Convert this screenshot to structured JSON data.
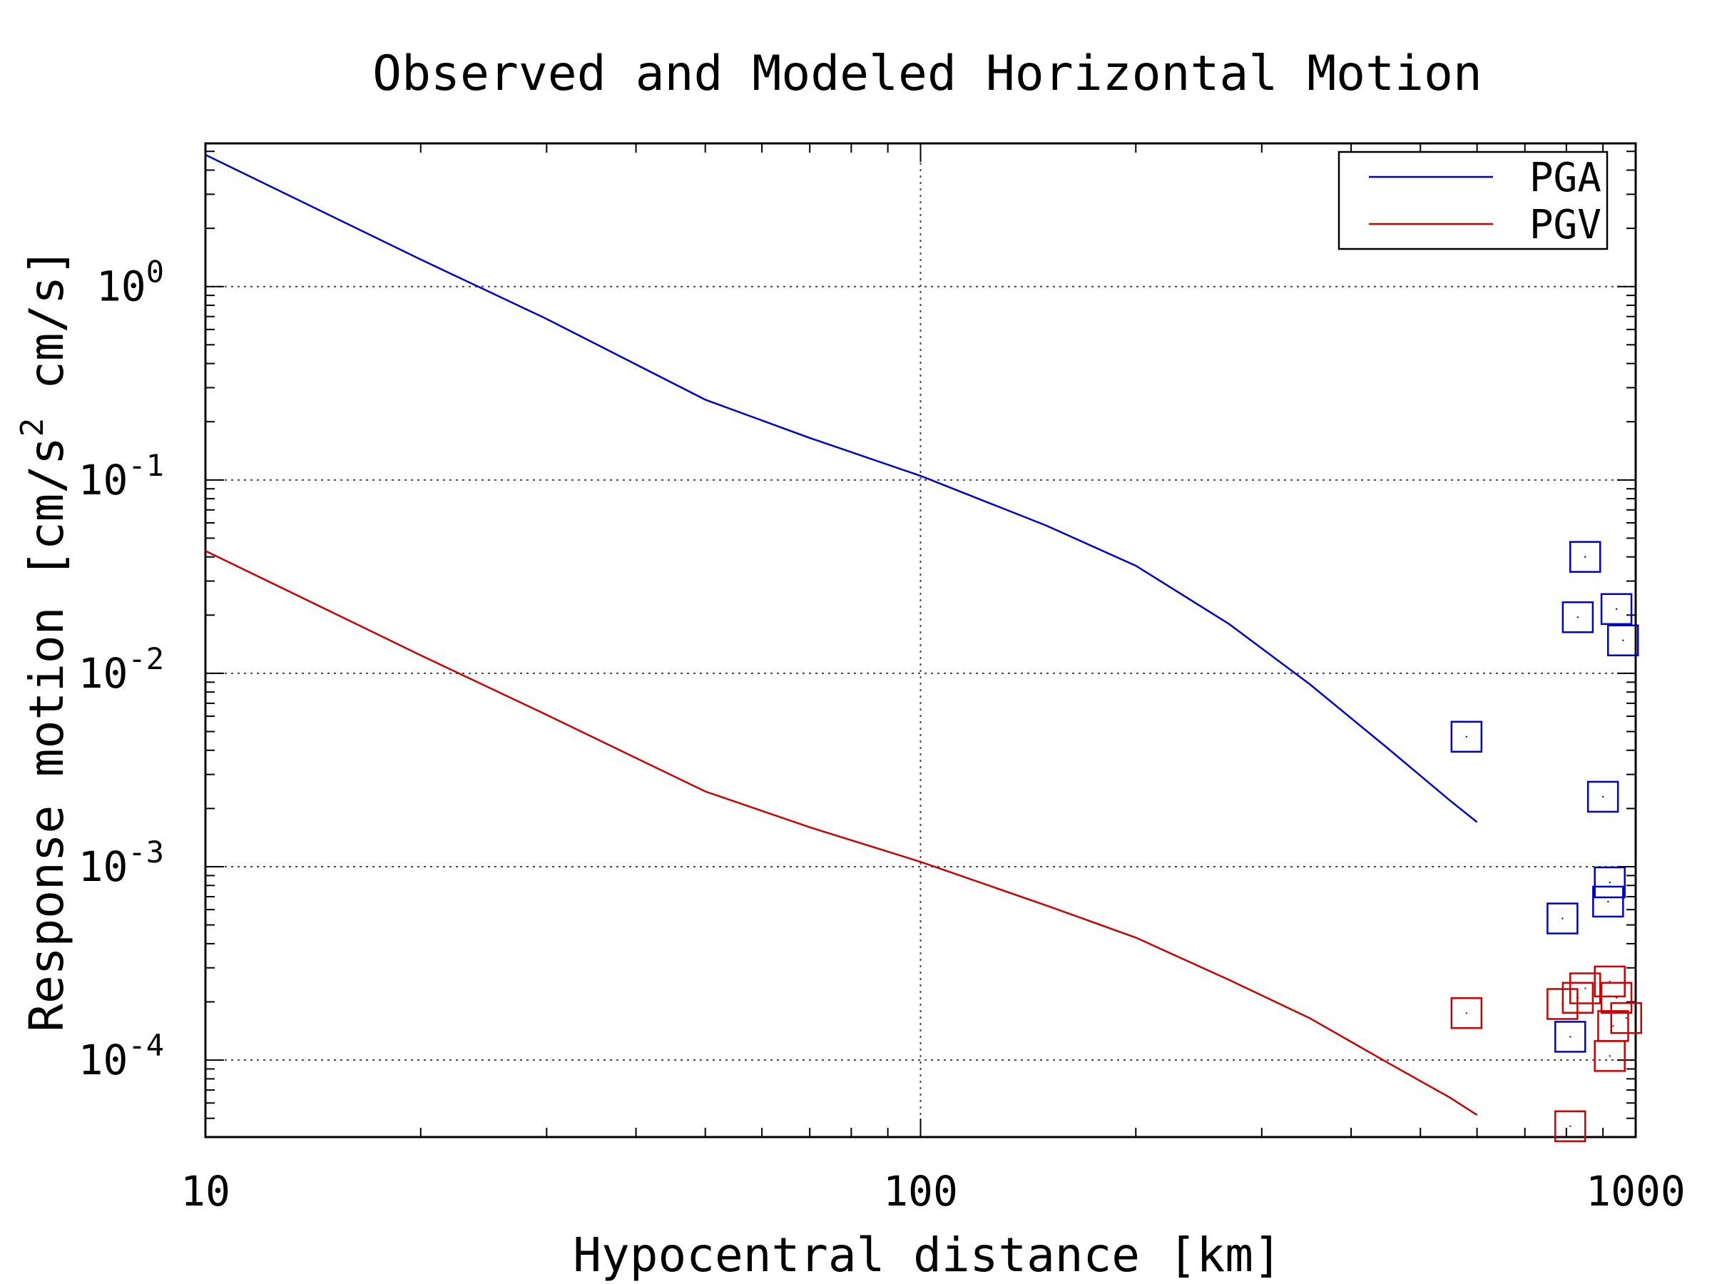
{
  "chart_data": {
    "type": "line",
    "title": "Observed and Modeled Horizontal Motion",
    "xlabel": "Hypocentral distance [km]",
    "ylabel": "Response motion  [cm/s",
    "ylabel_sup": "2",
    "ylabel_end": "  cm/s]",
    "x_scale": "log",
    "y_scale": "log",
    "xlim": [
      10,
      1000
    ],
    "ylim": [
      4e-05,
      5.5
    ],
    "grid": true,
    "legend_position": "top-right",
    "x_ticks": [
      {
        "value": 10,
        "label": "10"
      },
      {
        "value": 100,
        "label": "100"
      },
      {
        "value": 1000,
        "label": "1000"
      }
    ],
    "y_ticks": [
      {
        "value": 1,
        "base": "10",
        "exp": "0"
      },
      {
        "value": 0.1,
        "base": "10",
        "exp": "-1"
      },
      {
        "value": 0.01,
        "base": "10",
        "exp": "-2"
      },
      {
        "value": 0.001,
        "base": "10",
        "exp": "-3"
      },
      {
        "value": 0.0001,
        "base": "10",
        "exp": "-4"
      }
    ],
    "series": [
      {
        "name": "PGA",
        "color": "#0000cc",
        "kind": "line",
        "x": [
          10,
          20,
          30,
          50,
          70,
          100,
          150,
          200,
          270,
          350,
          450,
          550,
          600
        ],
        "y": [
          4.8,
          1.38,
          0.68,
          0.26,
          0.165,
          0.105,
          0.058,
          0.036,
          0.018,
          0.0088,
          0.0041,
          0.0022,
          0.0017
        ]
      },
      {
        "name": "PGV",
        "color": "#cc0000",
        "kind": "line",
        "x": [
          10,
          20,
          30,
          50,
          70,
          100,
          150,
          200,
          270,
          350,
          450,
          550,
          600
        ],
        "y": [
          0.043,
          0.0124,
          0.0061,
          0.00245,
          0.0016,
          0.00106,
          0.00063,
          0.00043,
          0.00026,
          0.000165,
          9.7e-05,
          6.4e-05,
          5.2e-05
        ]
      }
    ],
    "observed": [
      {
        "series": "PGA",
        "color": "#0000cc",
        "points": [
          {
            "x": 850,
            "y": 0.04
          },
          {
            "x": 830,
            "y": 0.0195
          },
          {
            "x": 940,
            "y": 0.0215
          },
          {
            "x": 960,
            "y": 0.0148
          },
          {
            "x": 580,
            "y": 0.0047
          },
          {
            "x": 900,
            "y": 0.0023
          },
          {
            "x": 920,
            "y": 0.00083
          },
          {
            "x": 915,
            "y": 0.00066
          },
          {
            "x": 790,
            "y": 0.00054
          },
          {
            "x": 810,
            "y": 0.000132
          }
        ]
      },
      {
        "series": "PGV",
        "color": "#cc0000",
        "points": [
          {
            "x": 580,
            "y": 0.000175
          },
          {
            "x": 790,
            "y": 0.000195
          },
          {
            "x": 830,
            "y": 0.00021
          },
          {
            "x": 850,
            "y": 0.000235
          },
          {
            "x": 920,
            "y": 0.000255
          },
          {
            "x": 940,
            "y": 0.00021
          },
          {
            "x": 970,
            "y": 0.000165
          },
          {
            "x": 930,
            "y": 0.00015
          },
          {
            "x": 920,
            "y": 0.000105
          },
          {
            "x": 810,
            "y": 4.55e-05
          }
        ]
      }
    ]
  }
}
